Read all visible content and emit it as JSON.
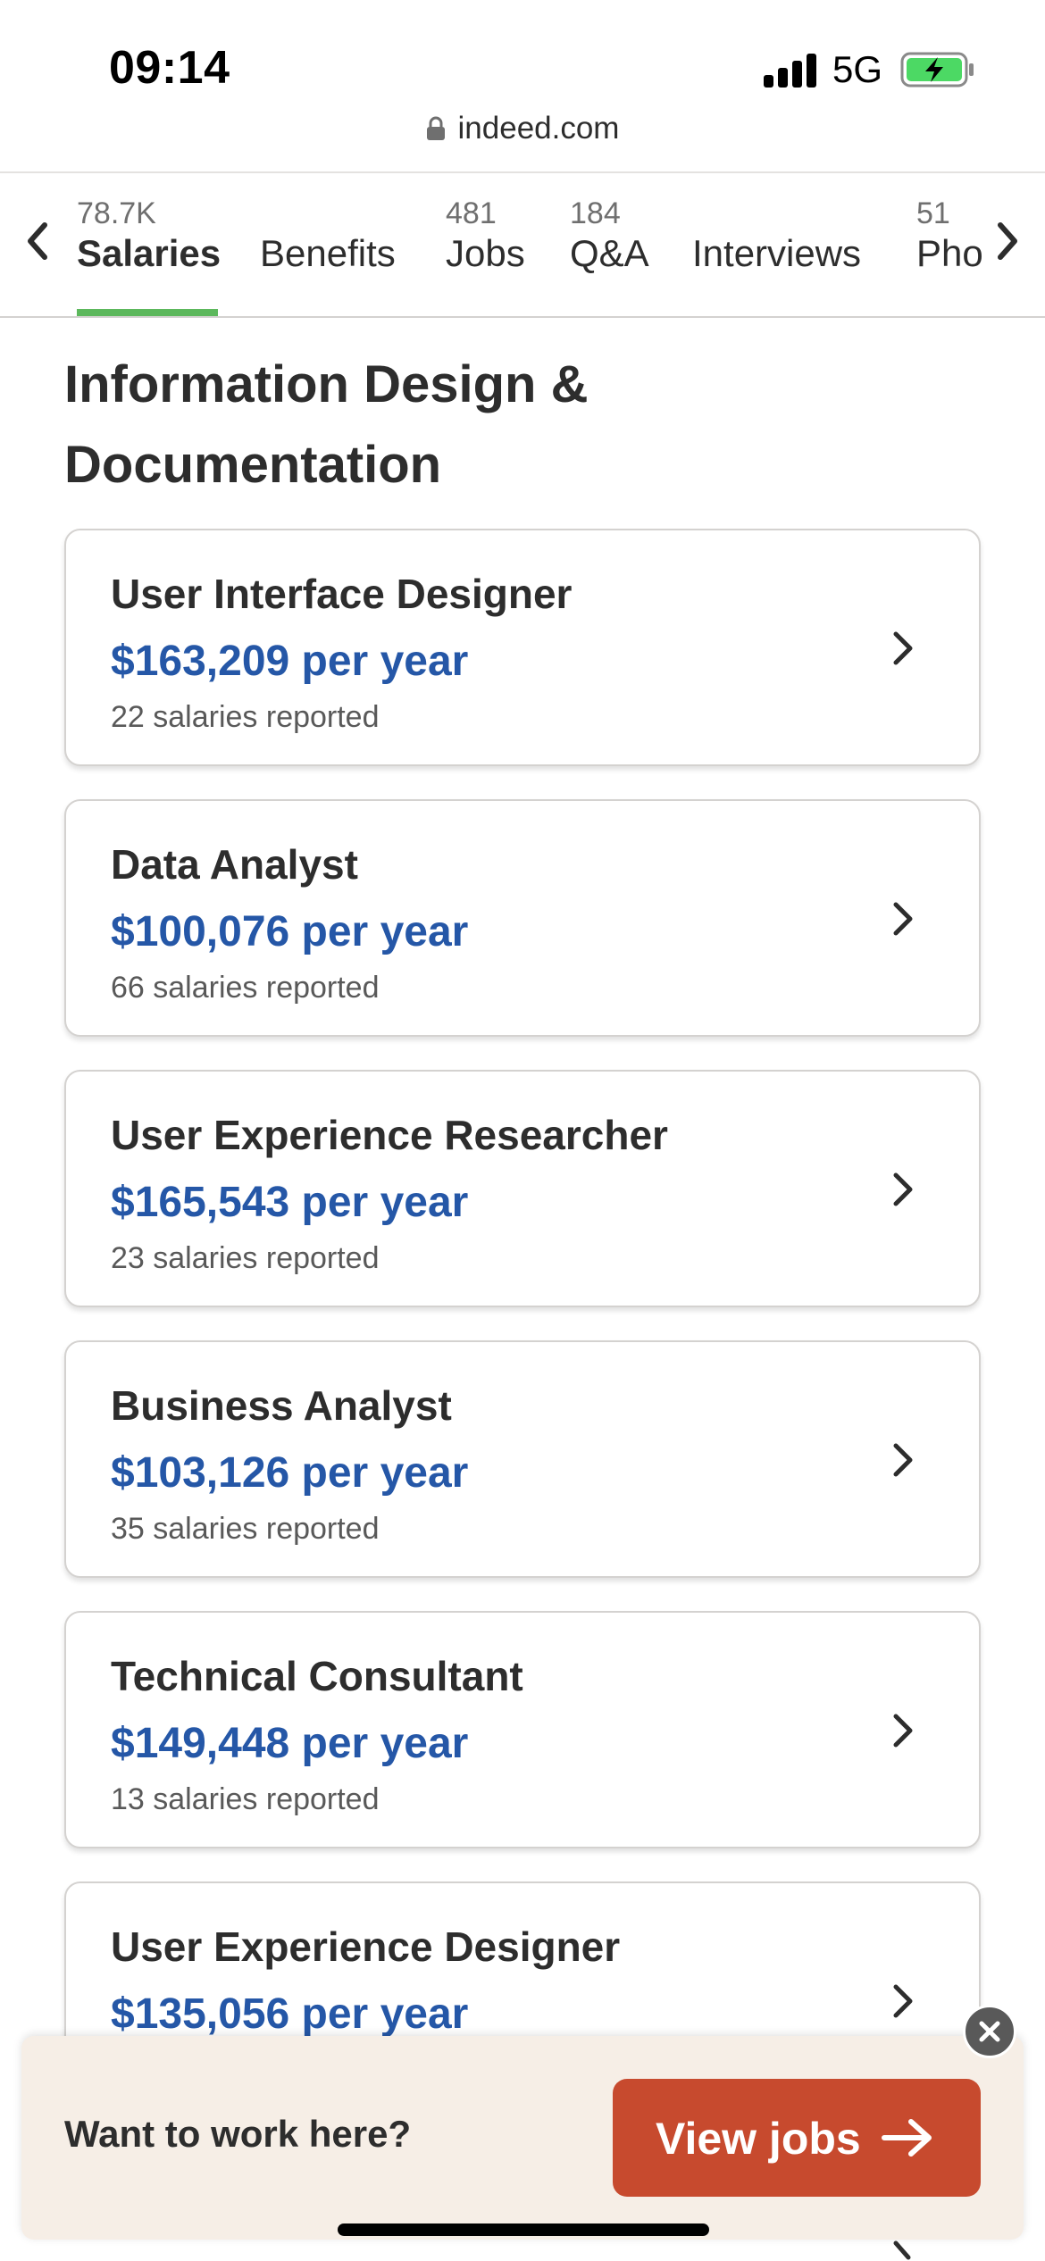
{
  "status_bar": {
    "time": "09:14",
    "network": "5G",
    "battery_color": "#4cd964"
  },
  "browser": {
    "url": "indeed.com"
  },
  "tabs": [
    {
      "count": "78.7K",
      "label": "Salaries",
      "active": true
    },
    {
      "count": "",
      "label": "Benefits",
      "active": false
    },
    {
      "count": "481",
      "label": "Jobs",
      "active": false
    },
    {
      "count": "184",
      "label": "Q&A",
      "active": false
    },
    {
      "count": "",
      "label": "Interviews",
      "active": false
    },
    {
      "count": "51",
      "label": "Pho",
      "active": false
    }
  ],
  "section": {
    "title": "Information Design & Documentation"
  },
  "salary_cards": [
    {
      "title": "User Interface Designer",
      "salary": "$163,209 per year",
      "reported": "22 salaries reported"
    },
    {
      "title": "Data Analyst",
      "salary": "$100,076 per year",
      "reported": "66 salaries reported"
    },
    {
      "title": "User Experience Researcher",
      "salary": "$165,543 per year",
      "reported": "23 salaries reported"
    },
    {
      "title": "Business Analyst",
      "salary": "$103,126 per year",
      "reported": "35 salaries reported"
    },
    {
      "title": "Technical Consultant",
      "salary": "$149,448 per year",
      "reported": "13 salaries reported"
    },
    {
      "title": "User Experience Designer",
      "salary": "$135,056 per year",
      "reported": ""
    }
  ],
  "banner": {
    "prompt": "Want to work here?",
    "button_label": "View jobs"
  },
  "colors": {
    "accent_green": "#5cb85c",
    "salary_blue": "#2557a7",
    "cta_orange": "#c74a2e",
    "banner_bg": "#f6eee6"
  }
}
